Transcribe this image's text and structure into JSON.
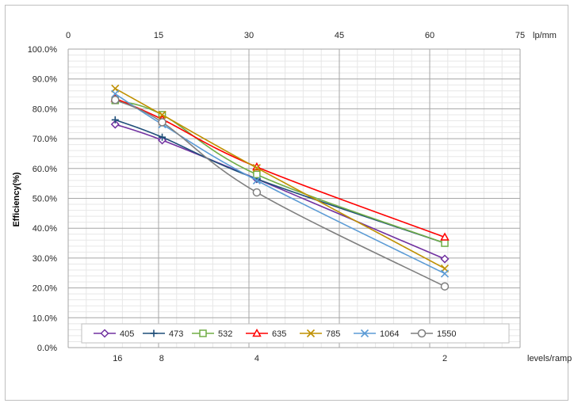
{
  "chart_data": {
    "type": "line",
    "ylabel": "Efficiency(%)",
    "ylim": [
      0,
      100
    ],
    "y_ticks": [
      "0.0%",
      "10.0%",
      "20.0%",
      "30.0%",
      "40.0%",
      "50.0%",
      "60.0%",
      "70.0%",
      "80.0%",
      "90.0%",
      "100.0%"
    ],
    "top_axis": {
      "ticks": [
        "0",
        "15",
        "30",
        "45",
        "60",
        "75"
      ],
      "unit": "lp/mm",
      "range": [
        0,
        75
      ]
    },
    "bottom_axis": {
      "ticks": [
        {
          "label": "16",
          "at": 8.2
        },
        {
          "label": "8",
          "at": 15.5
        },
        {
          "label": "4",
          "at": 31.3
        },
        {
          "label": "2",
          "at": 62.5
        }
      ],
      "unit": "levels/ramp"
    },
    "x": [
      7.8,
      15.6,
      31.3,
      62.5
    ],
    "legend_position": "bottom",
    "grid": true,
    "series": [
      {
        "name": "405",
        "color": "#7030a0",
        "marker": "diamond",
        "values": [
          74.8,
          69.5,
          56.5,
          29.7
        ]
      },
      {
        "name": "473",
        "color": "#1f4e79",
        "marker": "plus",
        "values": [
          76.3,
          70.5,
          56.5,
          35.0
        ]
      },
      {
        "name": "532",
        "color": "#70ad47",
        "marker": "square",
        "values": [
          82.8,
          78.0,
          58.0,
          35.0
        ]
      },
      {
        "name": "635",
        "color": "#ff0000",
        "marker": "triangle",
        "values": [
          83.5,
          76.5,
          60.5,
          37.0
        ]
      },
      {
        "name": "785",
        "color": "#bf9000",
        "marker": "x",
        "values": [
          86.8,
          78.0,
          60.2,
          26.5
        ]
      },
      {
        "name": "1064",
        "color": "#5b9bd5",
        "marker": "cross",
        "values": [
          85.0,
          74.8,
          56.0,
          24.8
        ]
      },
      {
        "name": "1550",
        "color": "#7f7f7f",
        "marker": "circle",
        "values": [
          83.0,
          75.5,
          52.0,
          20.5
        ]
      }
    ]
  }
}
